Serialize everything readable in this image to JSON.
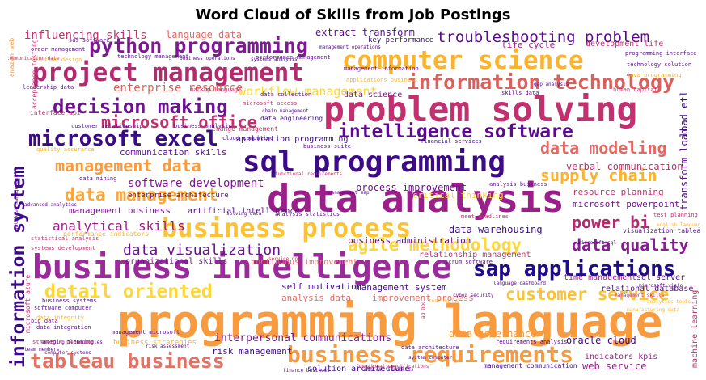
{
  "chart_data": {
    "type": "wordcloud",
    "title": "Word Cloud of Skills from Job Postings",
    "words": [
      {
        "text": "programming language",
        "color": "#f89b3f"
      },
      {
        "text": "data analysis",
        "color": "#9b1f8a"
      },
      {
        "text": "business intelligence",
        "color": "#9b2a9a"
      },
      {
        "text": "problem solving",
        "color": "#c2306f"
      },
      {
        "text": "business process",
        "color": "#fbc334"
      },
      {
        "text": "sql programming",
        "color": "#3b0a86"
      },
      {
        "text": "computer science",
        "color": "#fbb32b"
      },
      {
        "text": "project management",
        "color": "#b42a6f"
      },
      {
        "text": "information technology",
        "color": "#d9605c"
      },
      {
        "text": "python programming",
        "color": "#7d1a90"
      },
      {
        "text": "business requirements",
        "color": "#f59a3f"
      },
      {
        "text": "microsoft excel",
        "color": "#3b0a86"
      },
      {
        "text": "sap applications",
        "color": "#200c8a"
      },
      {
        "text": "tableau business",
        "color": "#e07365"
      },
      {
        "text": "intelligence software",
        "color": "#5a0b8e"
      },
      {
        "text": "decision making",
        "color": "#6c1390"
      },
      {
        "text": "detail oriented",
        "color": "#fbd737"
      },
      {
        "text": "information system",
        "color": "#3b0a86"
      },
      {
        "text": "agile methodology",
        "color": "#fbd737"
      },
      {
        "text": "data management",
        "color": "#fba53a"
      },
      {
        "text": "troubleshooting problem",
        "color": "#5a0b8e"
      },
      {
        "text": "customer service",
        "color": "#fbc334"
      },
      {
        "text": "data modeling",
        "color": "#e36a64"
      },
      {
        "text": "supply chain",
        "color": "#fbb32b"
      },
      {
        "text": "management data",
        "color": "#f89b3f"
      },
      {
        "text": "data quality",
        "color": "#8a1a96"
      },
      {
        "text": "data visualization",
        "color": "#6c1390"
      },
      {
        "text": "power bi",
        "color": "#b42a6f"
      },
      {
        "text": "microsoft office",
        "color": "#c2306f"
      },
      {
        "text": "workflow management",
        "color": "#fbd737"
      },
      {
        "text": "analytical skills",
        "color": "#9b1f8a"
      },
      {
        "text": "software development",
        "color": "#7d1a90"
      },
      {
        "text": "enterprise resource",
        "color": "#d9605c"
      },
      {
        "text": "influencing skills",
        "color": "#c2306f"
      },
      {
        "text": "extract transform",
        "color": "#5a0b8e"
      },
      {
        "text": "language data",
        "color": "#e36a64"
      },
      {
        "text": "communication skills",
        "color": "#5a0b8e"
      },
      {
        "text": "interpersonal communications",
        "color": "#7d1a90"
      },
      {
        "text": "risk management",
        "color": "#3b0a86"
      },
      {
        "text": "data warehousing",
        "color": "#3b0a86"
      },
      {
        "text": "organizational skills",
        "color": "#6c1390"
      },
      {
        "text": "management business",
        "color": "#7d1a90"
      },
      {
        "text": "process improvement",
        "color": "#6c1390"
      },
      {
        "text": "business administration",
        "color": "#5a0b8e"
      },
      {
        "text": "management system",
        "color": "#3b0a86"
      },
      {
        "text": "self motivation",
        "color": "#3b0a86"
      },
      {
        "text": "analysis data",
        "color": "#e36a64"
      },
      {
        "text": "improvement process",
        "color": "#e36a64"
      },
      {
        "text": "data governance",
        "color": "#f59a3f"
      },
      {
        "text": "oracle cloud",
        "color": "#3b0a86"
      },
      {
        "text": "web service",
        "color": "#9b1f8a"
      },
      {
        "text": "solution architecture",
        "color": "#3b0a86"
      },
      {
        "text": "machine learning",
        "color": "#c2306f"
      },
      {
        "text": "transform load",
        "color": "#5a0b8e"
      },
      {
        "text": "load etl",
        "color": "#3b0a86"
      },
      {
        "text": "verbal communication",
        "color": "#c2306f"
      },
      {
        "text": "critical thinking",
        "color": "#fbd737"
      },
      {
        "text": "resource planning",
        "color": "#c2306f"
      },
      {
        "text": "microsoft powerpoint",
        "color": "#6c1390"
      },
      {
        "text": "relationship management",
        "color": "#c2306f"
      },
      {
        "text": "continuous improvement",
        "color": "#e36a64"
      },
      {
        "text": "time management",
        "color": "#9b1f8a"
      },
      {
        "text": "sql server",
        "color": "#5a0b8e"
      },
      {
        "text": "relational database",
        "color": "#5a0b8e"
      },
      {
        "text": "indicators kpis",
        "color": "#9b1f8a"
      },
      {
        "text": "life cycle",
        "color": "#9b1f8a"
      },
      {
        "text": "key performance",
        "color": "#3b0a86"
      },
      {
        "text": "development life",
        "color": "#c2306f"
      },
      {
        "text": "data science",
        "color": "#7d1a90"
      },
      {
        "text": "business objectives",
        "color": "#5a0b8e"
      },
      {
        "text": "sas software",
        "color": "#5a0b8e"
      },
      {
        "text": "technology management",
        "color": "#5a0b8e"
      },
      {
        "text": "performance management",
        "color": "#5a0b8e"
      },
      {
        "text": "order management",
        "color": "#5a0b8e"
      },
      {
        "text": "programming interface",
        "color": "#5a0b8e"
      },
      {
        "text": "technology solution",
        "color": "#5a0b8e"
      },
      {
        "text": "application programming",
        "color": "#3b0a86"
      },
      {
        "text": "cloud computing",
        "color": "#3b0a86"
      },
      {
        "text": "financial services",
        "color": "#3b0a86"
      },
      {
        "text": "change management",
        "color": "#c2306f"
      },
      {
        "text": "data engineering",
        "color": "#3b0a86"
      },
      {
        "text": "data collection",
        "color": "#5a0b8e"
      },
      {
        "text": "microsoft access",
        "color": "#c2306f"
      },
      {
        "text": "customer relationship",
        "color": "#5a0b8e"
      },
      {
        "text": "business analysis",
        "color": "#5a0b8e"
      },
      {
        "text": "enterprise architecture",
        "color": "#5a0b8e"
      },
      {
        "text": "data mining",
        "color": "#5a0b8e"
      },
      {
        "text": "artificial intelligence",
        "color": "#5a0b8e"
      },
      {
        "text": "performance indicators",
        "color": "#fbb32b"
      },
      {
        "text": "statistical analysis",
        "color": "#c2306f"
      },
      {
        "text": "systems development",
        "color": "#c2306f"
      },
      {
        "text": "software computer",
        "color": "#5a0b8e"
      },
      {
        "text": "data integrity",
        "color": "#fbb32b"
      },
      {
        "text": "data integration",
        "color": "#5a0b8e"
      },
      {
        "text": "management microsoft",
        "color": "#5a0b8e"
      },
      {
        "text": "strategic planning",
        "color": "#c2306f"
      },
      {
        "text": "business strategies",
        "color": "#fbb32b"
      },
      {
        "text": "quality assurance",
        "color": "#fbb32b"
      },
      {
        "text": "acceptance testing",
        "color": "#c2306f"
      },
      {
        "text": "amazon web",
        "color": "#f89b3f"
      },
      {
        "text": "interface api",
        "color": "#c2306f"
      },
      {
        "text": "microsoft azure",
        "color": "#c2306f"
      },
      {
        "text": "human capital",
        "color": "#c2306f"
      },
      {
        "text": "visualization tableau",
        "color": "#5a0b8e"
      },
      {
        "text": "test planning",
        "color": "#c2306f"
      },
      {
        "text": "meet deadlines",
        "color": "#c2306f"
      },
      {
        "text": "analysis statistics",
        "color": "#5a0b8e"
      },
      {
        "text": "solution design",
        "color": "#fbb32b"
      },
      {
        "text": "markup language",
        "color": "#c2306f"
      },
      {
        "text": "management information",
        "color": "#5a0b8e"
      },
      {
        "text": "applications business",
        "color": "#fbb32b"
      },
      {
        "text": "skills data",
        "color": "#5a0b8e"
      },
      {
        "text": "leadership data",
        "color": "#5a0b8e"
      },
      {
        "text": "analysis business",
        "color": "#5a0b8e"
      },
      {
        "text": "scrum software",
        "color": "#5a0b8e"
      },
      {
        "text": "java programming",
        "color": "#fbb32b"
      },
      {
        "text": "business systems",
        "color": "#5a0b8e"
      },
      {
        "text": "big data",
        "color": "#5a0b8e"
      },
      {
        "text": "functional requirements",
        "color": "#c2306f"
      },
      {
        "text": "business suite",
        "color": "#5a0b8e"
      },
      {
        "text": "system computer",
        "color": "#5a0b8e"
      },
      {
        "text": "cyber security",
        "color": "#5a0b8e"
      },
      {
        "text": "management communication",
        "color": "#3b0a86"
      },
      {
        "text": "requirements analysis",
        "color": "#5a0b8e"
      },
      {
        "text": "data architecture",
        "color": "#5a0b8e"
      },
      {
        "text": "finance business",
        "color": "#5a0b8e"
      },
      {
        "text": "testing uat",
        "color": "#fbb32b"
      },
      {
        "text": "language dashboard",
        "color": "#5a0b8e"
      },
      {
        "text": "management operations",
        "color": "#5a0b8e"
      },
      {
        "text": "business operations",
        "color": "#5a0b8e"
      },
      {
        "text": "systems analysis",
        "color": "#5a0b8e"
      },
      {
        "text": "gap analysis",
        "color": "#5a0b8e"
      },
      {
        "text": "ethical standards",
        "color": "#5a0b8e"
      },
      {
        "text": "ad hoc",
        "color": "#c2306f"
      },
      {
        "text": "chain management",
        "color": "#5a0b8e"
      },
      {
        "text": "communication data",
        "color": "#c2306f"
      },
      {
        "text": "advanced analytics",
        "color": "#5a0b8e"
      },
      {
        "text": "database management",
        "color": "#5a0b8e"
      },
      {
        "text": "service now",
        "color": "#c2306f"
      },
      {
        "text": "english language",
        "color": "#fbb32b"
      },
      {
        "text": "solving data",
        "color": "#5a0b8e"
      },
      {
        "text": "functional specifications",
        "color": "#c2306f"
      },
      {
        "text": "microsoft visio",
        "color": "#5a0b8e"
      },
      {
        "text": "management sap",
        "color": "#5a0b8e"
      },
      {
        "text": "emerging technologies",
        "color": "#5a0b8e"
      },
      {
        "text": "microsoft sql",
        "color": "#5a0b8e"
      },
      {
        "text": "computer systems",
        "color": "#5a0b8e"
      },
      {
        "text": "management skills",
        "color": "#c2306f"
      },
      {
        "text": "analytics tools",
        "color": "#fbb32b"
      },
      {
        "text": "manufacturing data",
        "color": "#fbb32b"
      },
      {
        "text": "team members",
        "color": "#5a0b8e"
      },
      {
        "text": "risk assessment",
        "color": "#5a0b8e"
      }
    ]
  }
}
